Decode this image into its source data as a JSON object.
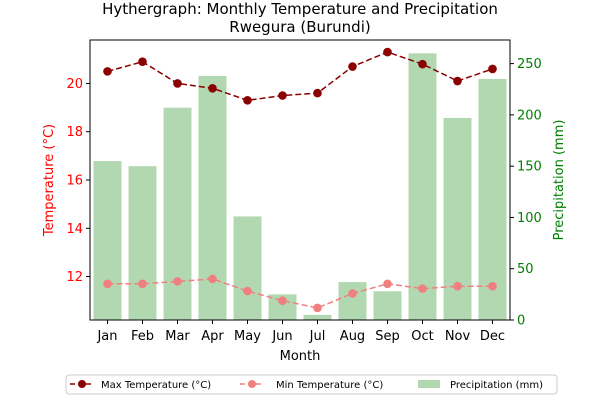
{
  "chart_data": {
    "type": "bar",
    "title": "Hythergraph: Monthly Temperature and Precipitation",
    "subtitle": "Rwegura (Burundi)",
    "xlabel": "Month",
    "ylabel_left": "Temperature (°C)",
    "ylabel_right": "Precipitation (mm)",
    "categories": [
      "Jan",
      "Feb",
      "Mar",
      "Apr",
      "May",
      "Jun",
      "Jul",
      "Aug",
      "Sep",
      "Oct",
      "Nov",
      "Dec"
    ],
    "ylim_left": [
      10.2,
      21.8
    ],
    "yticks_left": [
      "12",
      "14",
      "16",
      "18",
      "20"
    ],
    "ylim_right": [
      0,
      273
    ],
    "yticks_right": [
      "0",
      "50",
      "100",
      "150",
      "200",
      "250"
    ],
    "grid": false,
    "legend_position": "bottom",
    "series": [
      {
        "name": "Max Temperature (°C)",
        "type": "line",
        "axis": "left",
        "color": "#8b0000",
        "line_style": "dashed",
        "marker": "circle",
        "values": [
          20.5,
          20.9,
          20.0,
          19.8,
          19.3,
          19.5,
          19.6,
          20.7,
          21.3,
          20.8,
          20.1,
          20.6
        ]
      },
      {
        "name": "Min Temperature (°C)",
        "type": "line",
        "axis": "left",
        "color": "#f08080",
        "line_style": "dashed",
        "marker": "circle",
        "values": [
          11.7,
          11.7,
          11.8,
          11.9,
          11.4,
          11.0,
          10.7,
          11.3,
          11.7,
          11.5,
          11.6,
          11.6
        ]
      },
      {
        "name": "Precipitation (mm)",
        "type": "bar",
        "axis": "right",
        "color": "#b2d8b2",
        "values": [
          155,
          150,
          207,
          238,
          101,
          25,
          5,
          37,
          28,
          260,
          197,
          235
        ]
      }
    ],
    "colors": {
      "left_axis": "#ff0000",
      "right_axis": "#008000",
      "axes": "#000000"
    }
  }
}
